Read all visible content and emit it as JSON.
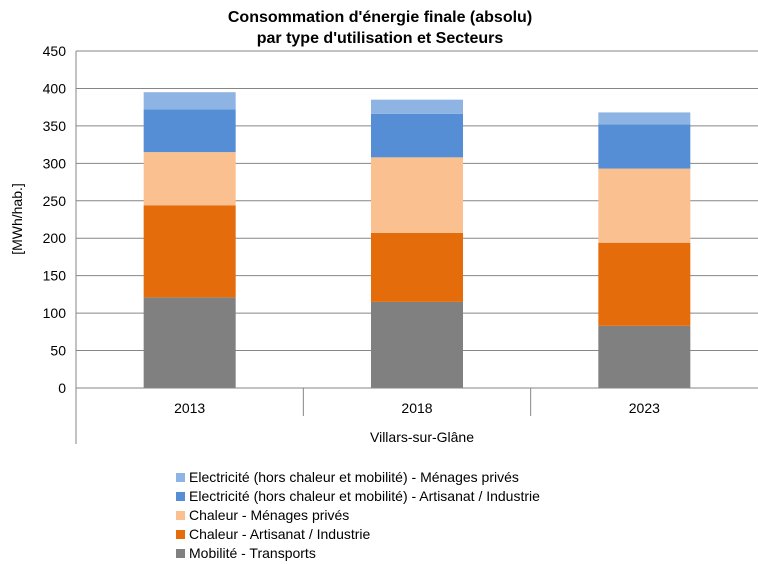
{
  "chart_data": {
    "type": "bar",
    "stacked": true,
    "title": [
      "Consommation d'énergie finale (absolu)",
      "par type d'utilisation et Secteurs"
    ],
    "ylabel": "[MWh/hab.]",
    "xlabel": "Villars-sur-Glâne",
    "ylim": [
      0,
      450
    ],
    "yticks": [
      0,
      50,
      100,
      150,
      200,
      250,
      300,
      350,
      400,
      450
    ],
    "grid": true,
    "legend_position": "bottom",
    "categories": [
      "2013",
      "2018",
      "2023"
    ],
    "series": [
      {
        "name": "Mobilité - Transports",
        "color": "#808080",
        "values": [
          121,
          115,
          83
        ]
      },
      {
        "name": "Chaleur - Artisanat / Industrie",
        "color": "#E46C0A",
        "values": [
          123,
          92,
          111
        ]
      },
      {
        "name": "Chaleur - Ménages privés",
        "color": "#FAC090",
        "values": [
          71,
          101,
          99
        ]
      },
      {
        "name": "Electricité (hors chaleur et mobilité) - Artisanat / Industrie",
        "color": "#558ED5",
        "values": [
          57,
          58,
          59
        ]
      },
      {
        "name": "Electricité (hors chaleur et mobilité) - Ménages privés",
        "color": "#8EB4E3",
        "values": [
          23,
          19,
          16
        ]
      }
    ]
  }
}
